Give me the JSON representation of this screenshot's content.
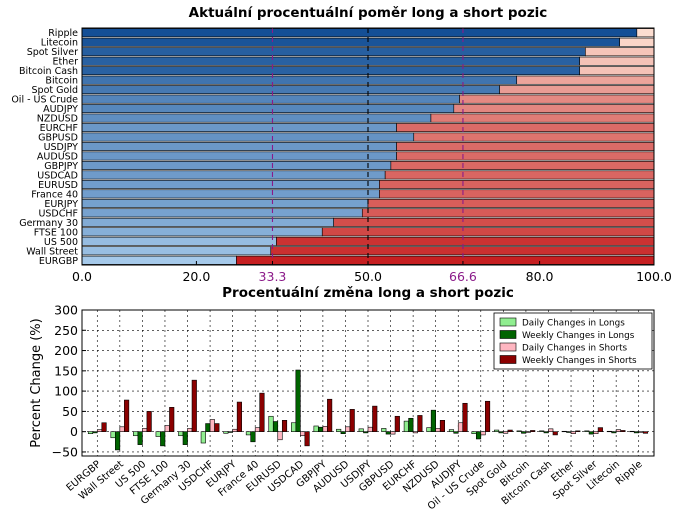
{
  "chart_data": [
    {
      "type": "bar",
      "orientation": "horizontal",
      "stacked": true,
      "title": "Aktuální procentuální poměr long a short pozic",
      "xlim": [
        0,
        100
      ],
      "xticks": [
        "0.0",
        "20.0",
        "33.3",
        "50.0",
        "66.6",
        "80.0",
        "100.0"
      ],
      "reference_lines": [
        {
          "value": 33.3,
          "color": "#8b1a89",
          "style": "dashed"
        },
        {
          "value": 50.0,
          "color": "#000000",
          "style": "dashed"
        },
        {
          "value": 66.6,
          "color": "#8b1a89",
          "style": "dashed"
        }
      ],
      "categories": [
        "Ripple",
        "Litecoin",
        "Spot Silver",
        "Ether",
        "Bitcoin Cash",
        "Bitcoin",
        "Spot Gold",
        "Oil - US Crude",
        "AUDJPY",
        "NZDUSD",
        "EURCHF",
        "GBPUSD",
        "USDJPY",
        "AUDUSD",
        "GBPJPY",
        "USDCAD",
        "EURUSD",
        "France 40",
        "EURJPY",
        "USDCHF",
        "Germany 30",
        "FTSE 100",
        "US 500",
        "Wall Street",
        "EURGBP"
      ],
      "long_percent": [
        97,
        94,
        88,
        87,
        87,
        76,
        73,
        66,
        65,
        61,
        55,
        58,
        55,
        55,
        54,
        53,
        52,
        52,
        50,
        49,
        44,
        42,
        34,
        33,
        27
      ],
      "colors": {
        "long": "#1f5fa8",
        "short": "#e0402f"
      }
    },
    {
      "type": "bar",
      "title": "Procentuální změna long a short pozic",
      "ylabel": "Percent Change (%)",
      "ylim": [
        -60,
        300
      ],
      "yticks": [
        "−50",
        "0",
        "50",
        "100",
        "150",
        "200",
        "250",
        "300"
      ],
      "categories": [
        "EURGBP",
        "Wall Street",
        "US 500",
        "FTSE 100",
        "Germany 30",
        "USDCHF",
        "EURJPY",
        "France 40",
        "EURUSD",
        "USDCAD",
        "GBPJPY",
        "AUDUSD",
        "USDJPY",
        "GBPUSD",
        "EURCHF",
        "NZDUSD",
        "AUDJPY",
        "Oil - US Crude",
        "Spot Gold",
        "Bitcoin",
        "Bitcoin Cash",
        "Ether",
        "Spot Silver",
        "Litecoin",
        "Ripple"
      ],
      "legend_placement": "top-right",
      "series": [
        {
          "name": "Daily Changes in Longs",
          "color": "#90ee90",
          "values": [
            -5,
            -15,
            -10,
            -12,
            -10,
            -28,
            -4,
            -8,
            38,
            22,
            14,
            6,
            7,
            8,
            26,
            10,
            5,
            -5,
            4,
            2,
            2,
            1,
            2,
            1,
            1
          ]
        },
        {
          "name": "Weekly Changes in Longs",
          "color": "#006400",
          "values": [
            -3,
            -45,
            -32,
            -35,
            -32,
            20,
            -2,
            -25,
            25,
            152,
            11,
            -5,
            -3,
            -6,
            33,
            53,
            -4,
            -18,
            -3,
            -4,
            -3,
            -2,
            -6,
            -3,
            -3
          ]
        },
        {
          "name": "Daily Changes in Shorts",
          "color": "#ffb6c1",
          "values": [
            5,
            12,
            8,
            15,
            8,
            30,
            6,
            10,
            -20,
            -10,
            13,
            12,
            11,
            -6,
            -3,
            8,
            22,
            -8,
            -4,
            -2,
            7,
            -5,
            -5,
            5,
            -2
          ]
        },
        {
          "name": "Weekly Changes in Shorts",
          "color": "#8b0000",
          "values": [
            22,
            78,
            50,
            60,
            127,
            20,
            73,
            95,
            28,
            -35,
            80,
            55,
            63,
            38,
            40,
            28,
            70,
            75,
            4,
            3,
            -8,
            2,
            10,
            3,
            -4
          ]
        }
      ]
    }
  ]
}
